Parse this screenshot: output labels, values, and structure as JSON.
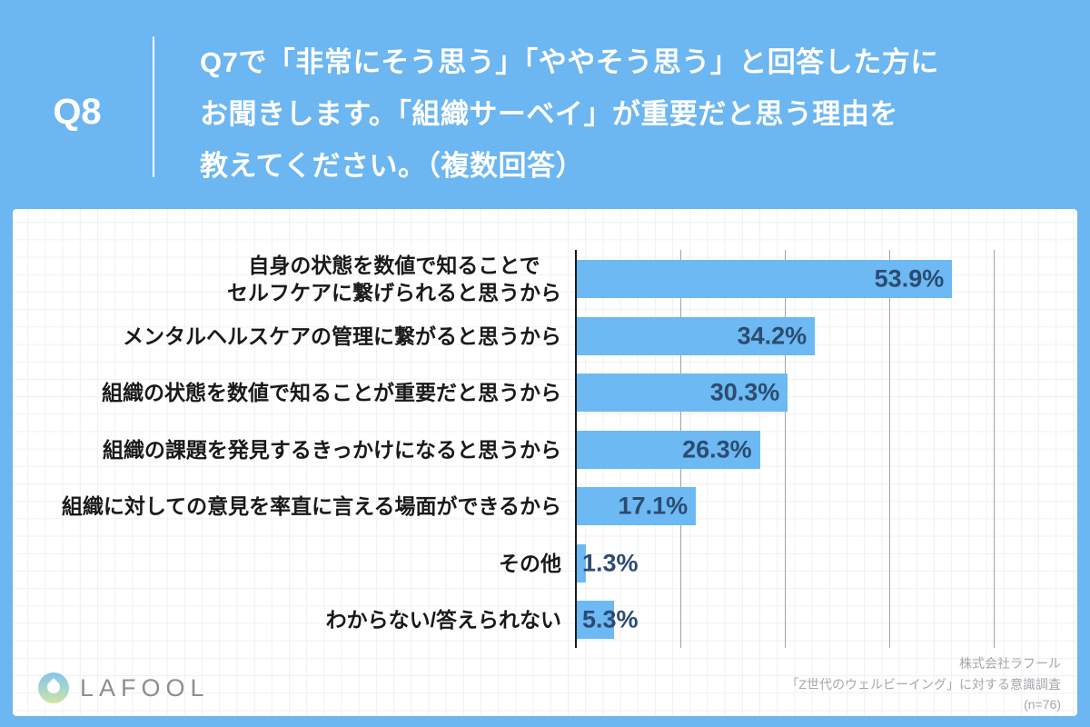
{
  "page": {
    "bg_color": "#6cb6f1",
    "card_bg": "#ffffff"
  },
  "header": {
    "q_label": "Q8",
    "title_lines": [
      "Q7で「非常にそう思う」「ややそう思う」と回答した方に",
      "お聞きします。「組織サーベイ」が重要だと思う理由を",
      "教えてください。（複数回答）"
    ]
  },
  "chart_data": {
    "type": "bar",
    "orientation": "horizontal",
    "categories": [
      "自身の状態を数値で知ることで\nセルフケアに繋げられると思うから",
      "メンタルヘルスケアの管理に繋がると思うから",
      "組織の状態を数値で知ることが重要だと思うから",
      "組織の課題を発見するきっかけになると思うから",
      "組織に対しての意見を率直に言える場面ができるから",
      "その他",
      "わからない/答えられない"
    ],
    "values": [
      53.9,
      34.2,
      30.3,
      26.3,
      17.1,
      1.3,
      5.3
    ],
    "value_labels": [
      "53.9%",
      "34.2%",
      "30.3%",
      "26.3%",
      "17.1%",
      "1.3%",
      "5.3%"
    ],
    "xlim": [
      0,
      72
    ],
    "gridline_interval_pct": 15,
    "grid": true,
    "legend": false,
    "bar_color": "#6cb9f3",
    "value_label_color": "#2d4b70",
    "axis_color": "#1b1b1b",
    "gridline_color": "#a3a3a3"
  },
  "footer": {
    "logo_text": "LAFOOL",
    "source_lines": [
      "株式会社ラフール",
      "「Z世代のウェルビーイング」に対する意識調査",
      "(n=76)"
    ]
  }
}
